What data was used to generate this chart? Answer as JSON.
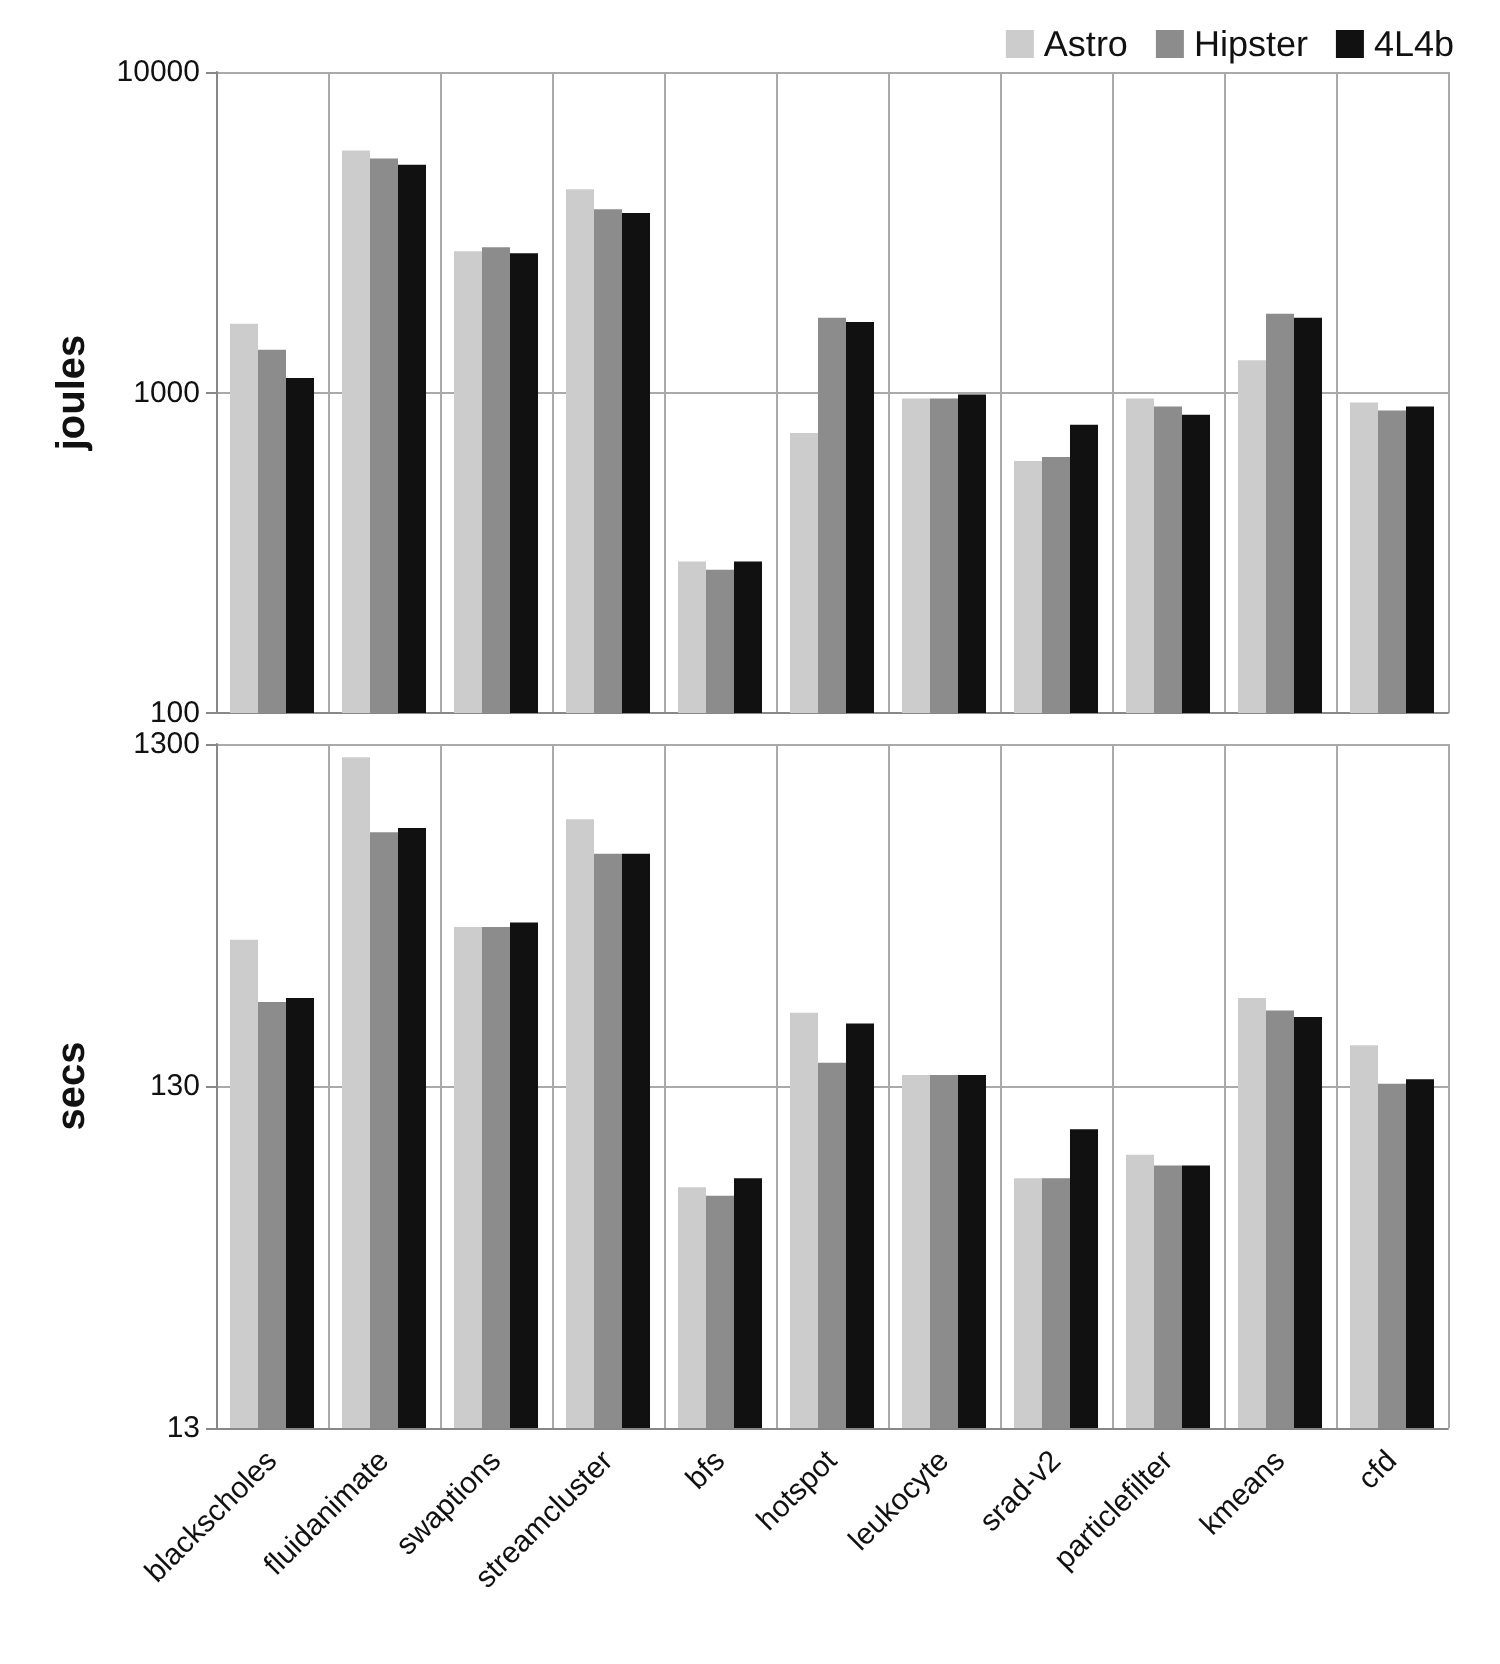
{
  "chart_data": [
    {
      "type": "bar",
      "ylabel": "joules",
      "categories": [
        null,
        null,
        null,
        null,
        null,
        null,
        null,
        null,
        null,
        null,
        null
      ],
      "log": "y",
      "ylim": [
        100,
        10000
      ],
      "yticks": [
        100,
        1000,
        10000
      ],
      "grid": true,
      "legend": "top right",
      "tick_labels": "y",
      "series": [
        {
          "name": "Astro",
          "color": "#cccccc",
          "values": [
            1640,
            5690,
            2760,
            4310,
            297,
            748,
            957,
            611,
            957,
            1260,
            930
          ]
        },
        {
          "name": "Hipster",
          "color": "#8c8c8c",
          "values": [
            1360,
            5370,
            2840,
            3730,
            280,
            1710,
            957,
            629,
            904,
            1760,
            878
          ]
        },
        {
          "name": "4L4b",
          "color": "#111111",
          "values": [
            1110,
            5140,
            2720,
            3630,
            297,
            1660,
            986,
            793,
            853,
            1710,
            904
          ]
        }
      ]
    },
    {
      "type": "bar",
      "ylabel": "secs",
      "categories": [
        "blackscholes",
        "fluidanimate",
        "swaptions",
        "streamcluster",
        "bfs",
        "hotspot",
        "leukocyte",
        "srad-v2",
        "particlefilter",
        "kmeans",
        "cfd"
      ],
      "log": "y",
      "ylim": [
        13,
        1300
      ],
      "yticks": [
        13,
        130,
        1300
      ],
      "grid": true,
      "series": [
        {
          "color": "#cccccc",
          "values": [
            348,
            1190,
            379,
            783,
            65.8,
            213,
            140,
            69.8,
            81.8,
            235,
            171
          ]
        },
        {
          "color": "#8c8c8c",
          "values": [
            229,
            718,
            379,
            621,
            62.1,
            152,
            140,
            69.8,
            76.1,
            216,
            132
          ]
        },
        {
          "color": "#111111",
          "values": [
            235,
            739,
            391,
            621,
            69.8,
            198,
            140,
            97.2,
            76.1,
            207,
            136
          ]
        }
      ]
    }
  ]
}
